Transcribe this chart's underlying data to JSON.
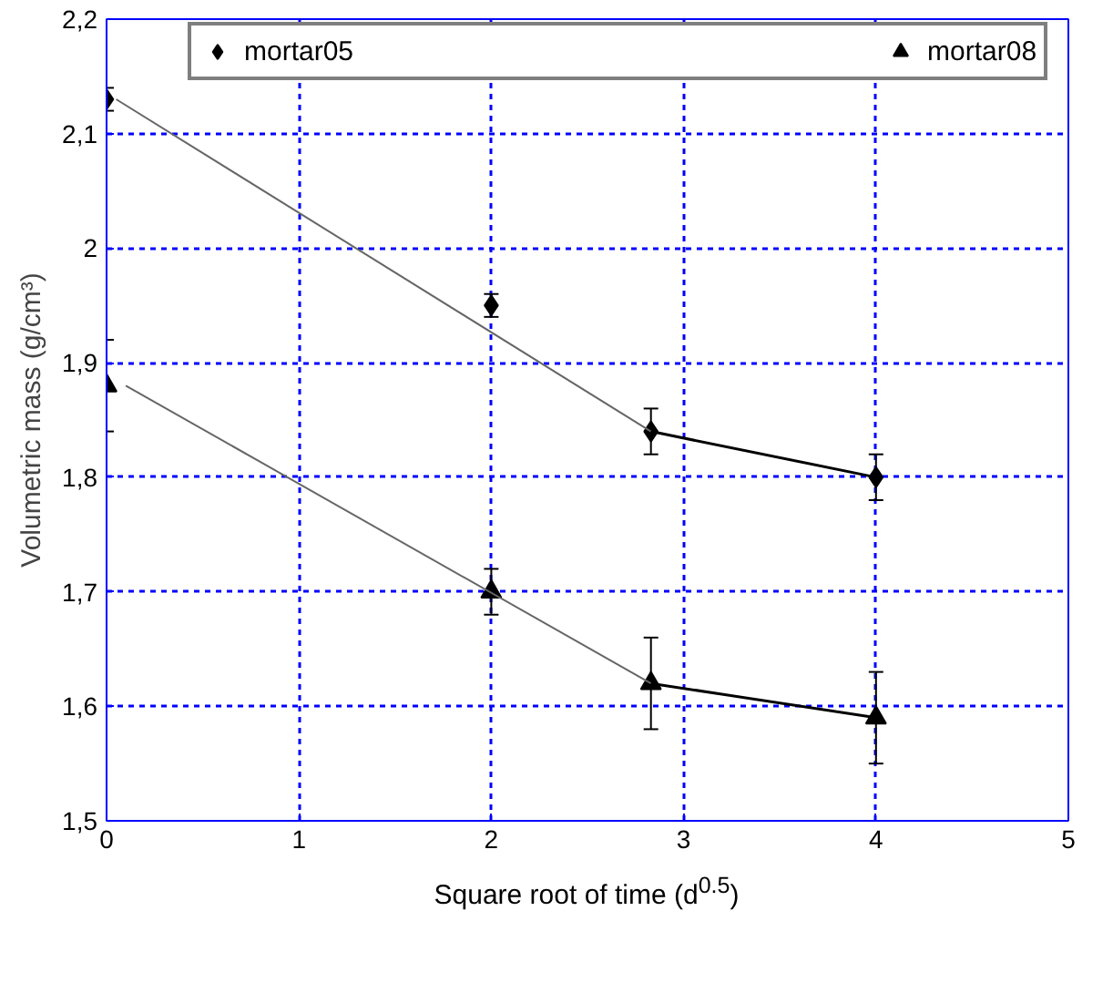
{
  "chart_data": {
    "type": "scatter",
    "xlabel": "Square root of time (d$^{0.5}$)",
    "ylabel": "Volumetric mass (g/cm³)",
    "xlim": [
      0,
      5
    ],
    "xticks": [
      0,
      1,
      2,
      3,
      4,
      5
    ],
    "ylim": [
      1.5,
      2.2
    ],
    "yticks": [
      {
        "value": 1.5,
        "label": "1,5"
      },
      {
        "value": 1.6,
        "label": "1,6"
      },
      {
        "value": 1.7,
        "label": "1,7"
      },
      {
        "value": 1.8,
        "label": "1,8"
      },
      {
        "value": 1.9,
        "label": "1,9"
      },
      {
        "value": 2,
        "label": "2"
      },
      {
        "value": 2.1,
        "label": "2,1"
      },
      {
        "value": 2.2,
        "label": "2,2"
      }
    ],
    "grid": true,
    "legend": "top",
    "series": [
      {
        "name": "mortar05",
        "marker": "diamond",
        "color": "#000000",
        "x": [
          0,
          2,
          2.83,
          4
        ],
        "values": [
          2.13,
          1.95,
          1.84,
          1.8
        ],
        "errors": [
          0.01,
          0.01,
          0.02,
          0.02
        ]
      },
      {
        "name": "mortar08",
        "marker": "triangle",
        "color": "#000000",
        "x": [
          0,
          2,
          2.83,
          4
        ],
        "values": [
          1.88,
          1.7,
          1.62,
          1.59
        ],
        "errors": [
          0.04,
          0.02,
          0.04,
          0.04
        ]
      },
      {
        "type": "line",
        "color": "#666666",
        "x": [
          0.05,
          2.83
        ],
        "values": [
          2.13,
          1.84
        ]
      },
      {
        "type": "line",
        "color": "#000000",
        "x": [
          2.83,
          4
        ],
        "values": [
          1.84,
          1.8
        ]
      },
      {
        "type": "line",
        "color": "#666666",
        "x": [
          0.1,
          2.83
        ],
        "values": [
          1.88,
          1.62
        ]
      },
      {
        "type": "line",
        "color": "#000000",
        "x": [
          2.83,
          4
        ],
        "values": [
          1.62,
          1.59
        ]
      }
    ]
  }
}
